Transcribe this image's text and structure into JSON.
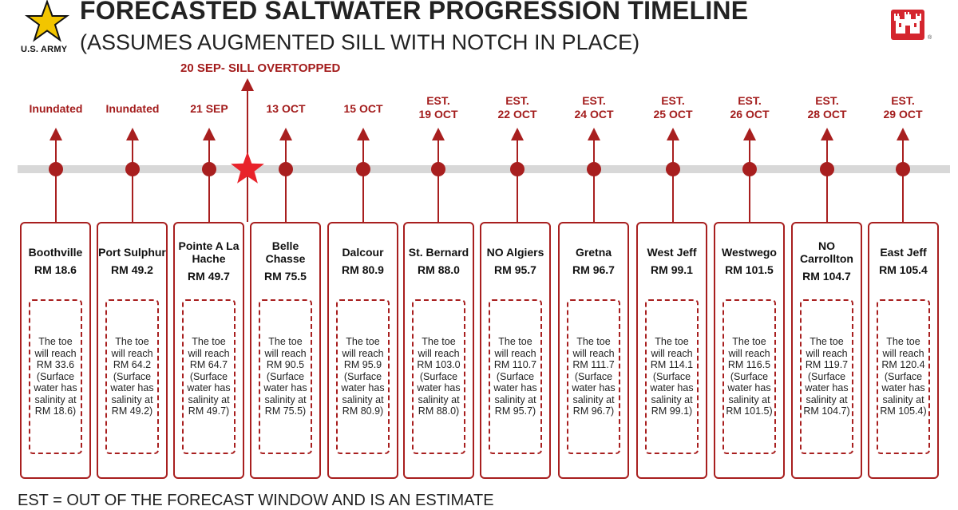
{
  "header": {
    "org": "U.S. ARMY",
    "title": "FORECASTED SALTWATER PROGRESSION TIMELINE",
    "subtitle": "(ASSUMES AUGMENTED SILL WITH NOTCH IN PLACE)"
  },
  "sill_event": "20 SEP- SILL OVERTOPPED",
  "colors": {
    "accent": "#a81f1f",
    "timeline": "#d8d8d8",
    "star": "#e8222a"
  },
  "locations": [
    {
      "date": "Inundated",
      "name": "Boothville",
      "rm": "RM 18.6",
      "note": "The toe will reach RM 33.6 (Surface water has salinity at RM 18.6)"
    },
    {
      "date": "Inundated",
      "name": "Port Sulphur",
      "rm": "RM 49.2",
      "note": "The toe will reach RM 64.2 (Surface water has salinity at RM 49.2)"
    },
    {
      "date": "21 SEP",
      "name": "Pointe A La Hache",
      "rm": "RM 49.7",
      "note": "The toe will reach RM 64.7 (Surface water has salinity at RM 49.7)"
    },
    {
      "date": "13 OCT",
      "name": "Belle Chasse",
      "rm": "RM 75.5",
      "note": "The toe will reach RM 90.5 (Surface water has salinity at RM 75.5)"
    },
    {
      "date": "15 OCT",
      "name": "Dalcour",
      "rm": "RM 80.9",
      "note": "The toe will reach RM 95.9 (Surface water has salinity at RM 80.9)"
    },
    {
      "date": "EST. 19 OCT",
      "name": "St. Bernard",
      "rm": "RM 88.0",
      "note": "The toe will reach RM 103.0 (Surface water has salinity at RM 88.0)"
    },
    {
      "date": "EST. 22 OCT",
      "name": "NO Algiers",
      "rm": "RM 95.7",
      "note": "The toe will reach RM 110.7 (Surface water has salinity at RM 95.7)"
    },
    {
      "date": "EST. 24 OCT",
      "name": "Gretna",
      "rm": "RM 96.7",
      "note": "The toe will reach RM 111.7 (Surface water has salinity at RM 96.7)"
    },
    {
      "date": "EST. 25 OCT",
      "name": "West Jeff",
      "rm": "RM 99.1",
      "note": "The toe will reach RM 114.1 (Surface water has salinity at RM 99.1)"
    },
    {
      "date": "EST. 26 OCT",
      "name": "Westwego",
      "rm": "RM 101.5",
      "note": "The toe will reach RM 116.5 (Surface water has salinity at RM 101.5)"
    },
    {
      "date": "EST. 28 OCT",
      "name": "NO Carrollton",
      "rm": "RM 104.7",
      "note": "The toe will reach RM 119.7 (Surface water has salinity at RM 104.7)"
    },
    {
      "date": "EST. 29 OCT",
      "name": "East Jeff",
      "rm": "RM 105.4",
      "note": "The toe will reach RM 120.4 (Surface water has salinity at RM 105.4)"
    }
  ],
  "footer": "EST = OUT OF THE FORECAST WINDOW AND IS AN ESTIMATE"
}
